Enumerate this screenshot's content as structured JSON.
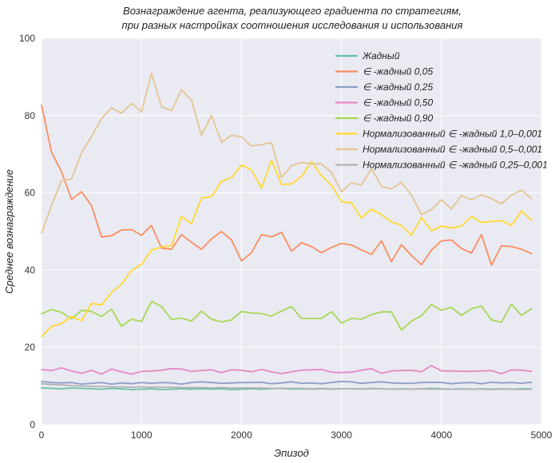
{
  "chart_data": {
    "type": "line",
    "title_lines": [
      "Вознаграждение агента, реализующего градиента по стратегиям,",
      "при разных настройках соотношения исследования и использования"
    ],
    "xlabel": "Эпизод",
    "ylabel": "Среднее вознаграждение",
    "xlim": [
      0,
      5000
    ],
    "ylim": [
      0,
      100
    ],
    "xticks": [
      0,
      1000,
      2000,
      3000,
      4000,
      5000
    ],
    "yticks": [
      0,
      20,
      40,
      60,
      80,
      100
    ],
    "grid": true,
    "legend_position": "top-right",
    "x": [
      0,
      100,
      200,
      300,
      400,
      500,
      600,
      700,
      800,
      900,
      1000,
      1100,
      1200,
      1300,
      1400,
      1500,
      1600,
      1700,
      1800,
      1900,
      2000,
      2100,
      2200,
      2300,
      2400,
      2500,
      2600,
      2700,
      2800,
      2900,
      3000,
      3100,
      3200,
      3300,
      3400,
      3500,
      3600,
      3700,
      3800,
      3900,
      4000,
      4100,
      4200,
      4300,
      4400,
      4500,
      4600,
      4700,
      4800,
      4900
    ],
    "series": [
      {
        "name": "Жадный",
        "color": "#66c2a5",
        "values": [
          9.5,
          9.4,
          9.3,
          9.5,
          9.4,
          9.3,
          9.2,
          9.4,
          9.3,
          9.1,
          9.2,
          9.3,
          9.1,
          9.2,
          9.3,
          9.2,
          9.3,
          9.2,
          9.3,
          9.1,
          9.2,
          9.3,
          9.2,
          9.3,
          9.4,
          9.2,
          9.3,
          9.2,
          9.3,
          9.2,
          9.3,
          9.3,
          9.2,
          9.4,
          9.3,
          9.2,
          9.3,
          9.2,
          9.3,
          9.4,
          9.3,
          9.2,
          9.3,
          9.2,
          9.3,
          9.2,
          9.3,
          9.2,
          9.3,
          9.3
        ]
      },
      {
        "name": "∈ -жадный 0,05",
        "color": "#fc8d62",
        "values": [
          82.7,
          70.5,
          65.5,
          58.3,
          60.3,
          56.7,
          48.6,
          48.9,
          50.4,
          50.5,
          49.0,
          51.6,
          45.7,
          45.4,
          49.2,
          47.2,
          45.4,
          48.1,
          50.0,
          47.8,
          42.4,
          44.5,
          49.2,
          48.6,
          49.8,
          44.9,
          47.1,
          46.1,
          44.5,
          45.9,
          46.9,
          46.5,
          45.2,
          44.1,
          47.6,
          42.2,
          46.6,
          43.8,
          41.4,
          45.2,
          47.6,
          47.8,
          45.6,
          44.4,
          49.2,
          41.3,
          46.3,
          46.1,
          45.4,
          44.3
        ]
      },
      {
        "name": "∈ -жадный 0,25",
        "color": "#8da0cb",
        "values": [
          11.2,
          10.9,
          10.8,
          10.9,
          10.5,
          10.7,
          10.9,
          10.5,
          10.8,
          10.6,
          10.9,
          10.7,
          10.9,
          10.8,
          10.5,
          10.9,
          11.1,
          10.9,
          10.7,
          10.8,
          10.9,
          10.9,
          11.0,
          10.6,
          10.8,
          11.1,
          10.7,
          10.8,
          10.6,
          10.9,
          11.2,
          11.1,
          10.7,
          10.9,
          11.1,
          10.8,
          10.7,
          10.7,
          10.9,
          11.0,
          10.9,
          10.6,
          10.8,
          10.9,
          10.6,
          11.0,
          10.8,
          10.9,
          10.7,
          11.0
        ]
      },
      {
        "name": "∈ -жадный 0,50",
        "color": "#e78ac3",
        "values": [
          14.3,
          14.0,
          14.7,
          13.9,
          13.3,
          14.1,
          13.1,
          14.4,
          13.7,
          13.1,
          13.8,
          13.9,
          14.1,
          14.5,
          14.4,
          13.8,
          14.0,
          14.2,
          13.5,
          14.2,
          14.1,
          13.7,
          14.3,
          13.7,
          13.2,
          13.7,
          14.1,
          14.2,
          14.3,
          13.6,
          13.5,
          13.6,
          14.1,
          14.5,
          13.3,
          13.9,
          14.0,
          14.1,
          13.7,
          15.3,
          13.9,
          13.9,
          13.8,
          13.8,
          13.9,
          14.0,
          13.2,
          14.2,
          14.1,
          13.8
        ]
      },
      {
        "name": "∈ -жадный 0,90",
        "color": "#a6d854",
        "values": [
          28.7,
          29.8,
          29.1,
          27.4,
          29.6,
          29.3,
          28.0,
          29.9,
          25.5,
          27.3,
          26.7,
          31.9,
          30.6,
          27.2,
          27.6,
          26.8,
          29.4,
          27.3,
          26.6,
          27.1,
          29.3,
          28.9,
          28.8,
          28.1,
          29.4,
          30.6,
          27.5,
          27.5,
          27.5,
          29.3,
          26.3,
          27.5,
          27.3,
          28.5,
          29.2,
          29.2,
          24.5,
          26.8,
          28.2,
          31.1,
          29.6,
          30.4,
          28.3,
          30.0,
          30.7,
          27.1,
          26.5,
          31.2,
          28.3,
          30.0
        ]
      },
      {
        "name": "Нормализованный ∈ -жадный 1,0–0,001",
        "color": "#ffd92f",
        "values": [
          22.8,
          25.4,
          26.2,
          28.0,
          26.9,
          31.4,
          31.0,
          34.2,
          36.4,
          39.9,
          41.5,
          45.2,
          46.0,
          46.3,
          53.9,
          52.0,
          58.7,
          59.0,
          63.0,
          63.9,
          67.2,
          65.9,
          61.2,
          68.5,
          62.2,
          62.3,
          64.2,
          68.1,
          64.5,
          62.0,
          57.7,
          57.4,
          53.5,
          55.8,
          54.3,
          52.5,
          51.6,
          49.0,
          53.6,
          50.2,
          51.4,
          50.9,
          51.4,
          53.9,
          52.3,
          52.6,
          52.8,
          51.6,
          55.3,
          52.9
        ]
      },
      {
        "name": "Нормализованный ∈ -жадный 0,5–0,001",
        "color": "#e5c494",
        "values": [
          49.6,
          56.7,
          63.2,
          63.6,
          70.3,
          74.6,
          79.2,
          82.0,
          80.6,
          83.2,
          81.0,
          91.0,
          82.3,
          81.3,
          86.7,
          84.0,
          74.9,
          80.0,
          73.1,
          74.9,
          74.5,
          72.1,
          72.5,
          73.0,
          64.0,
          67.0,
          67.9,
          67.5,
          67.5,
          65.3,
          60.3,
          62.6,
          62.0,
          66.3,
          61.7,
          61.0,
          62.7,
          59.4,
          54.4,
          55.7,
          58.2,
          55.8,
          59.3,
          58.2,
          59.5,
          58.5,
          57.2,
          59.4,
          60.7,
          58.5
        ]
      },
      {
        "name": "Нормализованный ∈ -жадный 0,25–0,001",
        "color": "#b3b3b3",
        "values": [
          10.6,
          10.4,
          10.3,
          10.1,
          10.0,
          9.9,
          9.9,
          9.8,
          9.8,
          9.7,
          9.8,
          9.7,
          9.7,
          9.7,
          9.6,
          9.6,
          9.6,
          9.5,
          9.6,
          9.5,
          9.5,
          9.5,
          9.5,
          9.4,
          9.4,
          9.4,
          9.4,
          9.3,
          9.4,
          9.3,
          9.3,
          9.3,
          9.3,
          9.3,
          9.3,
          9.2,
          9.2,
          9.2,
          9.3,
          9.2,
          9.2,
          9.2,
          9.2,
          9.2,
          9.2,
          9.1,
          9.2,
          9.2,
          9.1,
          9.2
        ]
      }
    ]
  }
}
